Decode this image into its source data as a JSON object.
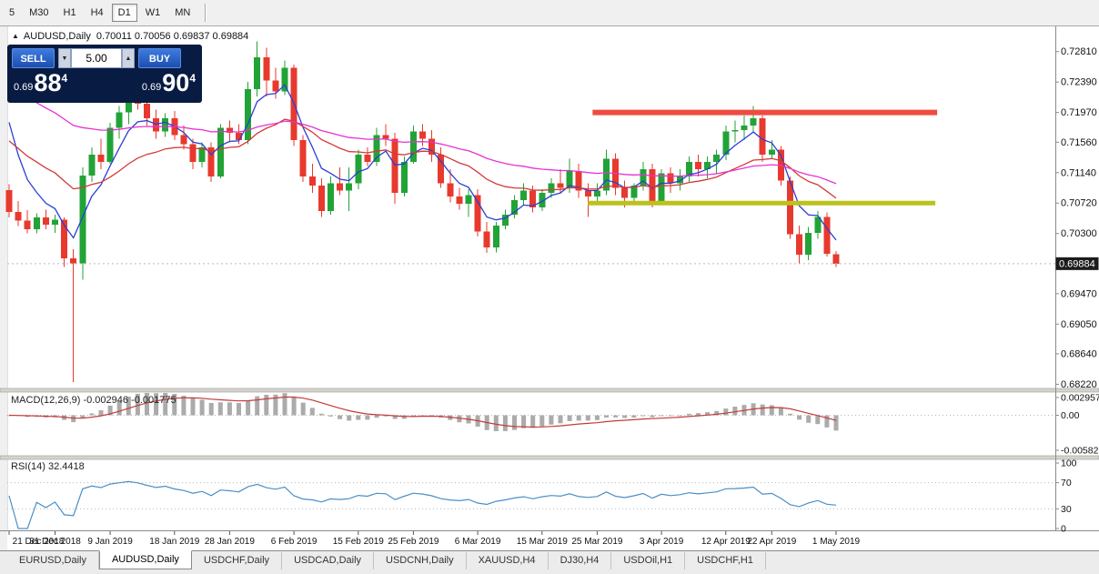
{
  "colors": {
    "bull": "#21a337",
    "bear": "#e8392e",
    "resistance": "#ef4b42",
    "support": "#bcc11c",
    "panel_navy": "#081b42",
    "button_blue": "#2a63cc",
    "macd_histogram": "#ababab",
    "macd_signal": "#c23b3b",
    "rsi_line": "#4a8fc7"
  },
  "toolbar": {
    "timeframes": [
      {
        "label": "5",
        "active": false
      },
      {
        "label": "M30",
        "active": false
      },
      {
        "label": "H1",
        "active": false
      },
      {
        "label": "H4",
        "active": false
      },
      {
        "label": "D1",
        "active": true
      },
      {
        "label": "W1",
        "active": false
      },
      {
        "label": "MN",
        "active": false
      }
    ]
  },
  "chart_header": {
    "symbol": "AUDUSD,Daily",
    "ohlc": "0.70011 0.70056 0.69837 0.69884"
  },
  "trade_panel": {
    "sell_label": "SELL",
    "buy_label": "BUY",
    "volume": "5.00",
    "sell_price": {
      "prefix": "0.69",
      "big": "88",
      "sup": "4"
    },
    "buy_price": {
      "prefix": "0.69",
      "big": "90",
      "sup": "4"
    }
  },
  "chart_data": {
    "type": "candlestick",
    "symbol": "AUDUSD",
    "timeframe": "Daily",
    "price_axis_labels": [
      "0.72810",
      "0.72390",
      "0.71970",
      "0.71560",
      "0.71140",
      "0.70720",
      "0.70300",
      "0.69470",
      "0.69050",
      "0.68640",
      "0.68220"
    ],
    "current_price": "0.69884",
    "candles": [
      [
        0.709,
        0.7098,
        0.7052,
        0.706
      ],
      [
        0.706,
        0.7075,
        0.704,
        0.7048
      ],
      [
        0.7048,
        0.7062,
        0.703,
        0.7036
      ],
      [
        0.7036,
        0.7058,
        0.703,
        0.7052
      ],
      [
        0.7052,
        0.7063,
        0.7036,
        0.7042
      ],
      [
        0.7042,
        0.7056,
        0.7031,
        0.7049
      ],
      [
        0.7049,
        0.7052,
        0.6984,
        0.6996
      ],
      [
        0.6996,
        0.7008,
        0.6825,
        0.6989
      ],
      [
        0.6989,
        0.7121,
        0.6966,
        0.711
      ],
      [
        0.711,
        0.7149,
        0.7101,
        0.7139
      ],
      [
        0.7139,
        0.7161,
        0.7119,
        0.7129
      ],
      [
        0.7129,
        0.7183,
        0.7126,
        0.7176
      ],
      [
        0.7176,
        0.7206,
        0.7161,
        0.7197
      ],
      [
        0.7197,
        0.7229,
        0.7181,
        0.7219
      ],
      [
        0.7219,
        0.7236,
        0.7201,
        0.7209
      ],
      [
        0.7209,
        0.7221,
        0.7179,
        0.7189
      ],
      [
        0.7189,
        0.7201,
        0.7161,
        0.7171
      ],
      [
        0.7171,
        0.7196,
        0.7163,
        0.7189
      ],
      [
        0.7189,
        0.7199,
        0.7159,
        0.7166
      ],
      [
        0.7166,
        0.7179,
        0.7146,
        0.7153
      ],
      [
        0.7153,
        0.7161,
        0.7119,
        0.7129
      ],
      [
        0.7129,
        0.7156,
        0.7121,
        0.7149
      ],
      [
        0.7149,
        0.7156,
        0.7101,
        0.7109
      ],
      [
        0.7109,
        0.7181,
        0.7106,
        0.7176
      ],
      [
        0.7176,
        0.7186,
        0.7156,
        0.7169
      ],
      [
        0.7169,
        0.7181,
        0.7153,
        0.7159
      ],
      [
        0.7159,
        0.7239,
        0.7153,
        0.7229
      ],
      [
        0.7229,
        0.7295,
        0.7219,
        0.7273
      ],
      [
        0.7273,
        0.7286,
        0.7219,
        0.7241
      ],
      [
        0.7241,
        0.7259,
        0.7216,
        0.7226
      ],
      [
        0.7226,
        0.7269,
        0.7221,
        0.7259
      ],
      [
        0.7259,
        0.7263,
        0.7151,
        0.7159
      ],
      [
        0.7159,
        0.7166,
        0.7101,
        0.7109
      ],
      [
        0.7109,
        0.7126,
        0.7086,
        0.7096
      ],
      [
        0.7096,
        0.7106,
        0.7053,
        0.7061
      ],
      [
        0.7061,
        0.7109,
        0.7056,
        0.7099
      ],
      [
        0.7099,
        0.7121,
        0.7083,
        0.7089
      ],
      [
        0.7089,
        0.7121,
        0.7061,
        0.7099
      ],
      [
        0.7099,
        0.7146,
        0.7091,
        0.7139
      ],
      [
        0.7139,
        0.7149,
        0.7123,
        0.7129
      ],
      [
        0.7129,
        0.7176,
        0.7123,
        0.7166
      ],
      [
        0.7166,
        0.7181,
        0.7151,
        0.7161
      ],
      [
        0.7161,
        0.7169,
        0.7071,
        0.7086
      ],
      [
        0.7086,
        0.7136,
        0.7081,
        0.7129
      ],
      [
        0.7129,
        0.7179,
        0.7126,
        0.7171
      ],
      [
        0.7171,
        0.7181,
        0.7151,
        0.7161
      ],
      [
        0.7161,
        0.7173,
        0.7129,
        0.7139
      ],
      [
        0.7139,
        0.7149,
        0.7093,
        0.7099
      ],
      [
        0.7099,
        0.7119,
        0.7073,
        0.7081
      ],
      [
        0.7081,
        0.7093,
        0.7063,
        0.7071
      ],
      [
        0.7071,
        0.7091,
        0.7053,
        0.7083
      ],
      [
        0.7083,
        0.7091,
        0.7026,
        0.7033
      ],
      [
        0.7033,
        0.7046,
        0.7003,
        0.7011
      ],
      [
        0.7011,
        0.7046,
        0.7004,
        0.7041
      ],
      [
        0.7041,
        0.7063,
        0.7036,
        0.7056
      ],
      [
        0.7056,
        0.7083,
        0.7051,
        0.7076
      ],
      [
        0.7076,
        0.7099,
        0.7069,
        0.7089
      ],
      [
        0.7089,
        0.7096,
        0.7059,
        0.7066
      ],
      [
        0.7066,
        0.7091,
        0.7061,
        0.7086
      ],
      [
        0.7086,
        0.7106,
        0.7079,
        0.7099
      ],
      [
        0.7099,
        0.7119,
        0.7086,
        0.7093
      ],
      [
        0.7093,
        0.7133,
        0.7086,
        0.7116
      ],
      [
        0.7116,
        0.7126,
        0.7079,
        0.7089
      ],
      [
        0.7089,
        0.7099,
        0.7053,
        0.7081
      ],
      [
        0.7081,
        0.7099,
        0.7071,
        0.7089
      ],
      [
        0.7089,
        0.7146,
        0.7083,
        0.7133
      ],
      [
        0.7133,
        0.7141,
        0.7083,
        0.7093
      ],
      [
        0.7093,
        0.7103,
        0.7066,
        0.7079
      ],
      [
        0.7079,
        0.7099,
        0.7069,
        0.7096
      ],
      [
        0.7096,
        0.7129,
        0.7089,
        0.7119
      ],
      [
        0.7119,
        0.7126,
        0.7066,
        0.7073
      ],
      [
        0.7073,
        0.7119,
        0.7069,
        0.7113
      ],
      [
        0.7113,
        0.7121,
        0.7086,
        0.7099
      ],
      [
        0.7099,
        0.7119,
        0.7089,
        0.7109
      ],
      [
        0.7109,
        0.7136,
        0.7101,
        0.7129
      ],
      [
        0.7129,
        0.7139,
        0.7109,
        0.7119
      ],
      [
        0.7119,
        0.7136,
        0.7106,
        0.7129
      ],
      [
        0.7129,
        0.7146,
        0.7113,
        0.7139
      ],
      [
        0.7139,
        0.7179,
        0.7131,
        0.7171
      ],
      [
        0.7171,
        0.7186,
        0.7156,
        0.7173
      ],
      [
        0.7173,
        0.7193,
        0.7159,
        0.7179
      ],
      [
        0.7179,
        0.7206,
        0.7169,
        0.7189
      ],
      [
        0.7189,
        0.7193,
        0.7129,
        0.7139
      ],
      [
        0.7139,
        0.7159,
        0.7133,
        0.7146
      ],
      [
        0.7146,
        0.7151,
        0.7096,
        0.7103
      ],
      [
        0.7103,
        0.7109,
        0.7023,
        0.7029
      ],
      [
        0.7029,
        0.7041,
        0.6988,
        0.7001
      ],
      [
        0.7001,
        0.7039,
        0.6993,
        0.7031
      ],
      [
        0.7031,
        0.7061,
        0.7023,
        0.7053
      ],
      [
        0.7053,
        0.7059,
        0.6998,
        0.7002
      ],
      [
        0.70011,
        0.70056,
        0.69837,
        0.69884
      ]
    ],
    "date_ticks": [
      {
        "label": "21 Dec 2018",
        "index": 0
      },
      {
        "label": "31 Dec 2018",
        "index": 5
      },
      {
        "label": "9 Jan 2019",
        "index": 11
      },
      {
        "label": "18 Jan 2019",
        "index": 18
      },
      {
        "label": "28 Jan 2019",
        "index": 24
      },
      {
        "label": "6 Feb 2019",
        "index": 31
      },
      {
        "label": "15 Feb 2019",
        "index": 38
      },
      {
        "label": "25 Feb 2019",
        "index": 44
      },
      {
        "label": "6 Mar 2019",
        "index": 51
      },
      {
        "label": "15 Mar 2019",
        "index": 58
      },
      {
        "label": "25 Mar 2019",
        "index": 64
      },
      {
        "label": "3 Apr 2019",
        "index": 71
      },
      {
        "label": "12 Apr 2019",
        "index": 78
      },
      {
        "label": "22 Apr 2019",
        "index": 83
      },
      {
        "label": "1 May 2019",
        "index": 90
      }
    ],
    "moving_averages": [
      {
        "period": 5,
        "seed": 0.7245,
        "color": "#2a3fd4"
      },
      {
        "period": 20,
        "seed": 0.7168,
        "color": "#d23a3a"
      },
      {
        "period": 45,
        "seed": 0.7242,
        "color": "#e632d2"
      }
    ],
    "hlines": [
      {
        "name": "resistance-line",
        "price": 0.7197,
        "from_index": 63.5,
        "to_index": 101,
        "color": "#ef4b42",
        "width": 6
      },
      {
        "name": "support-line",
        "price": 0.7072,
        "from_index": 63,
        "to_index": 100.8,
        "color": "#bcc11c",
        "width": 5
      }
    ],
    "macd": {
      "label": "MACD(12,26,9) -0.002946 -0.001775",
      "fast": 12,
      "slow": 26,
      "signal": 9,
      "axis_labels": [
        "0.002957",
        "0.00",
        "-0.005825"
      ]
    },
    "rsi": {
      "label": "RSI(14) 32.4418",
      "period": 14,
      "axis_labels": [
        "100",
        "70",
        "30",
        "0"
      ],
      "levels": [
        70,
        30
      ]
    }
  },
  "tabs": [
    {
      "label": "EURUSD,Daily",
      "active": false
    },
    {
      "label": "AUDUSD,Daily",
      "active": true
    },
    {
      "label": "USDCHF,Daily",
      "active": false
    },
    {
      "label": "USDCAD,Daily",
      "active": false
    },
    {
      "label": "USDCNH,Daily",
      "active": false
    },
    {
      "label": "XAUUSD,H4",
      "active": false
    },
    {
      "label": "DJ30,H4",
      "active": false
    },
    {
      "label": "USDOil,H1",
      "active": false
    },
    {
      "label": "USDCHF,H1",
      "active": false
    }
  ]
}
